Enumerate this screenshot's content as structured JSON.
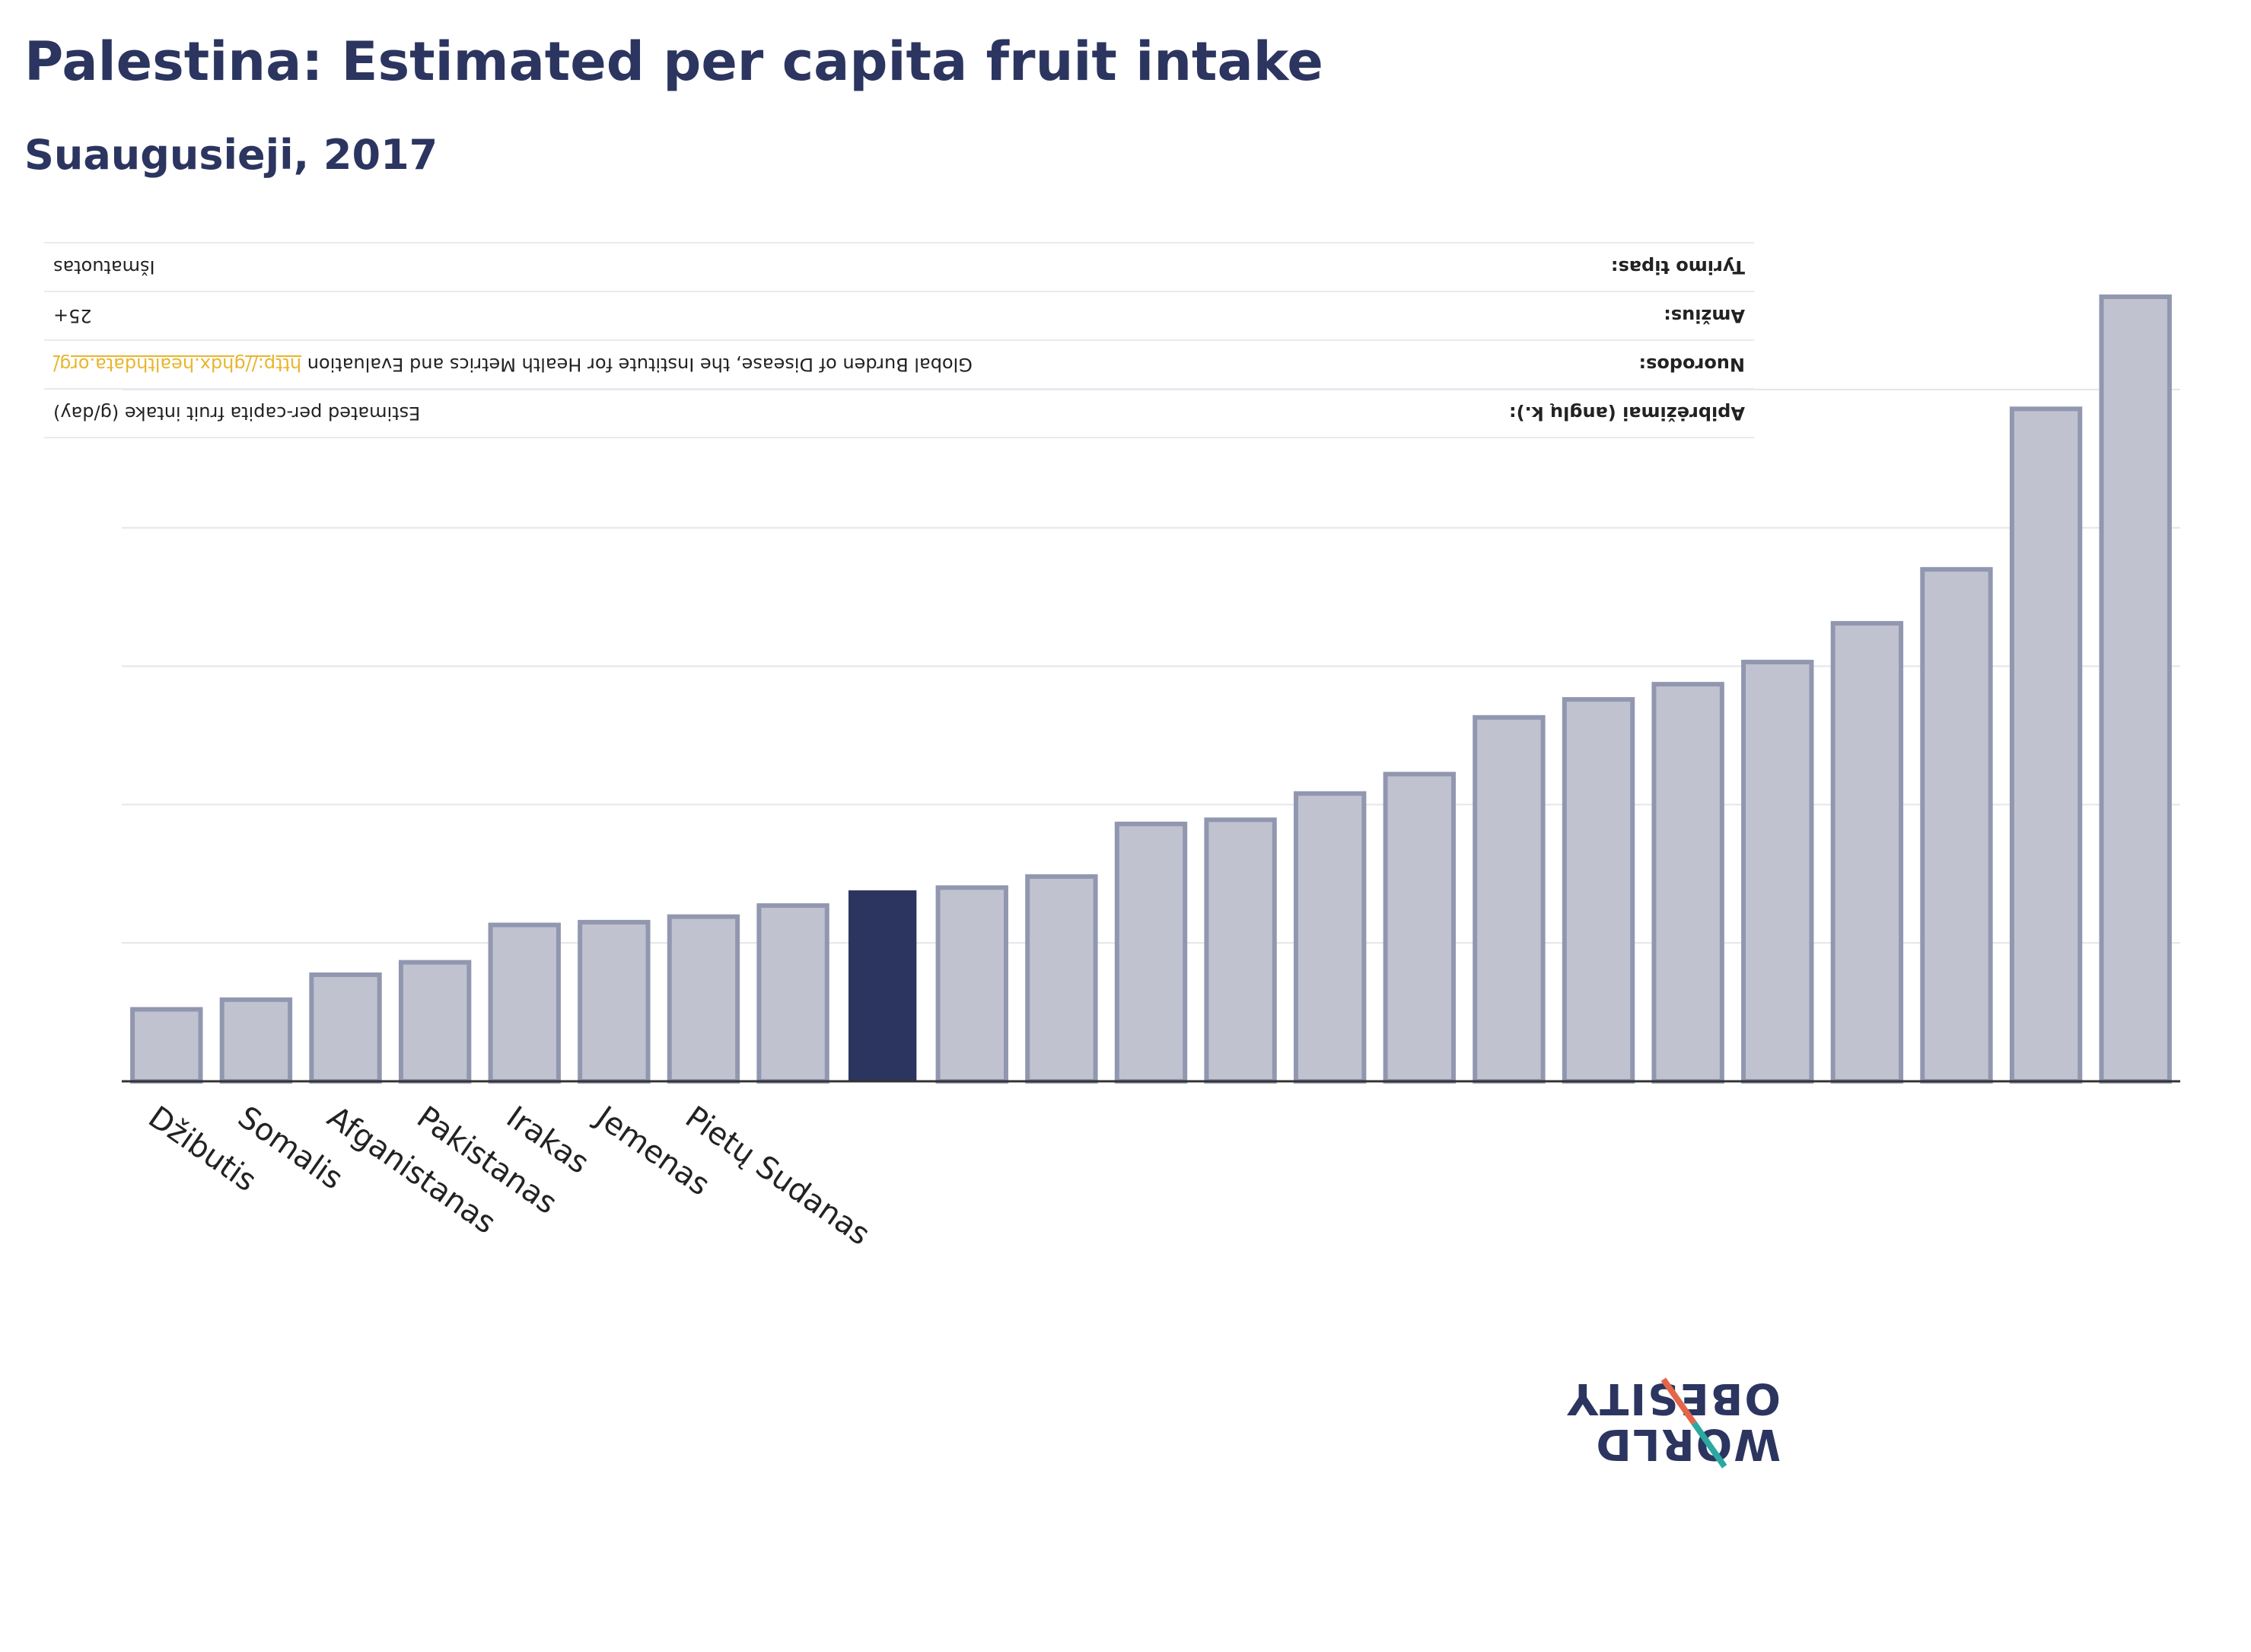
{
  "title": "Palestina: Estimated per capita fruit intake",
  "subtitle": "Suaugusieji, 2017",
  "info": {
    "rows": [
      {
        "label": "Apibrėžimai (anglų k.):",
        "value": "Estimated per-capita fruit intake (g/day)",
        "link": ""
      },
      {
        "label": "Nuorodos:",
        "value": "Global Burden of Disease, the Institute for Health Metrics and Evaluation ",
        "link": "http://ghdx.healthdata.org/"
      },
      {
        "label": "Amžius:",
        "value": "25+",
        "link": ""
      },
      {
        "label": "Tyrimo tipas:",
        "value": "Išmatuotas",
        "link": ""
      }
    ]
  },
  "colors": {
    "highlight": "#2b355f",
    "bar_fill": "#c0c3cf",
    "bar_stroke": "#9297b0",
    "grid": "#e3e6ea",
    "axis": "#333333"
  },
  "logo": {
    "word1": "WORLD",
    "word2": "OBESITY"
  },
  "chart_data": {
    "type": "bar",
    "title": "Palestina: Estimated per capita fruit intake",
    "subtitle": "Suaugusieji, 2017",
    "xlabel": "",
    "ylabel": "",
    "grid": true,
    "ylim": [
      0,
      300
    ],
    "yticks": [
      0,
      50,
      100,
      150,
      200,
      250
    ],
    "categories": [
      "Džibutis",
      "Somalis",
      "Afganistanas",
      "Pakistanas",
      "Irakas",
      "Jemenas",
      "Pietų Sudanas",
      "",
      "",
      "",
      "",
      "",
      "",
      "",
      "",
      "",
      "",
      "",
      "",
      "",
      "",
      "",
      ""
    ],
    "values": [
      26,
      29.5,
      38.5,
      43,
      56.5,
      57.5,
      59.5,
      63.5,
      69,
      70,
      74,
      93,
      94.5,
      104,
      111,
      131.5,
      138,
      143.5,
      151.5,
      165.5,
      185,
      243,
      283.5
    ],
    "highlight_index": 8
  }
}
